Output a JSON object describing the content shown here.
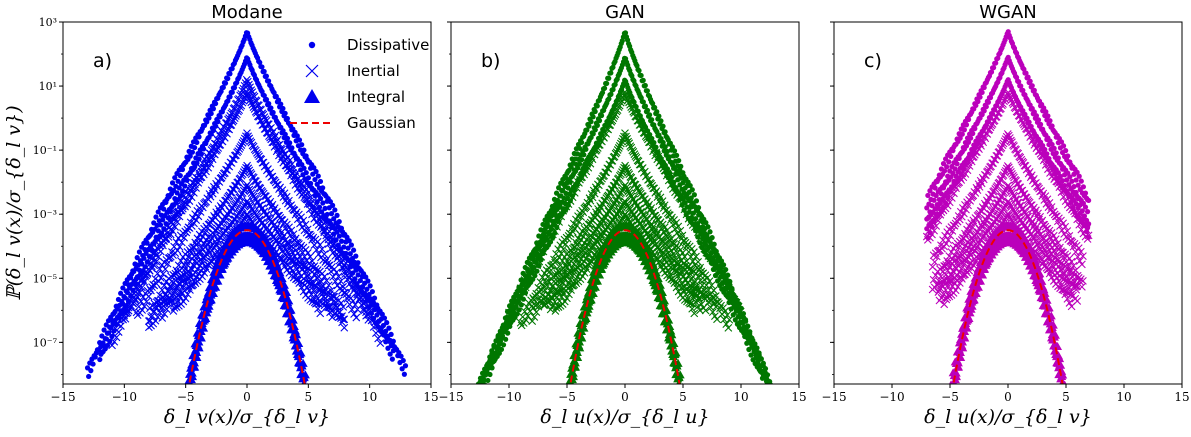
{
  "chart_data": [
    {
      "type": "scatter",
      "title": "Modane",
      "panel_label": "a)",
      "xlabel": "δ_l v(x)/σ_{δ_l v}",
      "ylabel": "ℙ(δ_l v(x)/σ_{δ_l v})",
      "xlim": [
        -15,
        15
      ],
      "ylim_log10": [
        -8.3,
        3
      ],
      "yscale": "log",
      "color": "#0000ee",
      "x_ticks": [
        "−15",
        "−10",
        "−5",
        "0",
        "5",
        "10",
        "15"
      ],
      "y_ticks": [
        "10⁻⁷",
        "10⁻⁵",
        "10⁻³",
        "10⁻¹",
        "10¹",
        "10³"
      ],
      "series_offsets_log10": [
        2.9,
        2.1,
        1.4,
        1.0,
        -0.3,
        -1.3,
        -1.9,
        -2.4,
        -2.8,
        -3.2,
        -3.5,
        -3.7
      ],
      "series_markers": [
        "dot",
        "dot",
        "x",
        "x",
        "x",
        "x",
        "x",
        "x",
        "x",
        "tri",
        "tri",
        "tri"
      ],
      "series_tail_alpha": [
        1.0,
        0.95,
        0.9,
        0.85,
        0.75,
        0.7,
        0.65,
        0.6,
        0.6,
        0.6,
        0.6,
        0.6
      ],
      "series_xmax": [
        13,
        12,
        11,
        10,
        9,
        8,
        8,
        7,
        6,
        5.5,
        5,
        4.8
      ],
      "legend": [
        {
          "label": "Dissipative",
          "marker": "dot"
        },
        {
          "label": "Inertial",
          "marker": "x"
        },
        {
          "label": "Integral",
          "marker": "tri"
        },
        {
          "label": "Gaussian",
          "marker": "dash"
        }
      ]
    },
    {
      "type": "scatter",
      "title": "GAN",
      "panel_label": "b)",
      "xlabel": "δ_l u(x)/σ_{δ_l u}",
      "xlim": [
        -15,
        15
      ],
      "ylim_log10": [
        -8.3,
        3
      ],
      "yscale": "log",
      "color": "#007700",
      "x_ticks": [
        "−15",
        "−10",
        "−5",
        "0",
        "5",
        "10",
        "15"
      ],
      "series_offsets_log10": [
        2.9,
        2.1,
        1.4,
        1.0,
        -0.3,
        -1.3,
        -1.9,
        -2.4,
        -2.8,
        -3.2,
        -3.5,
        -3.7
      ],
      "series_markers": [
        "dot",
        "dot",
        "dot",
        "x",
        "x",
        "x",
        "x",
        "x",
        "x",
        "tri",
        "tri",
        "tri"
      ],
      "series_tail_alpha": [
        1.1,
        1.0,
        0.95,
        0.85,
        0.8,
        0.7,
        0.65,
        0.6,
        0.6,
        0.6,
        0.6,
        0.6
      ],
      "series_xmax": [
        14,
        13,
        12,
        10,
        9,
        8,
        7,
        6.5,
        6,
        5.5,
        5,
        4.8
      ]
    },
    {
      "type": "scatter",
      "title": "WGAN",
      "panel_label": "c)",
      "xlabel": "δ_l u(x)/σ_{δ_l v}",
      "xlim": [
        -15,
        15
      ],
      "ylim_log10": [
        -8.3,
        3
      ],
      "yscale": "log",
      "color": "#bb00bb",
      "x_ticks": [
        "−15",
        "−10",
        "−5",
        "0",
        "5",
        "10",
        "15"
      ],
      "series_offsets_log10": [
        2.9,
        2.1,
        1.4,
        1.0,
        -0.3,
        -1.3,
        -1.9,
        -2.4,
        -2.8,
        -3.2,
        -3.5,
        -3.7
      ],
      "series_markers": [
        "dot",
        "dot",
        "dot",
        "x",
        "x",
        "x",
        "x",
        "x",
        "x",
        "tri",
        "tri",
        "tri"
      ],
      "series_tail_alpha": [
        0.95,
        0.9,
        0.85,
        0.8,
        0.75,
        0.7,
        0.65,
        0.6,
        0.6,
        0.6,
        0.6,
        0.6
      ],
      "series_xmax": [
        7,
        7,
        7,
        7,
        6.5,
        6.5,
        6,
        6,
        5.5,
        5,
        5,
        4.8
      ]
    }
  ],
  "gaussian_color": "#ee0000"
}
